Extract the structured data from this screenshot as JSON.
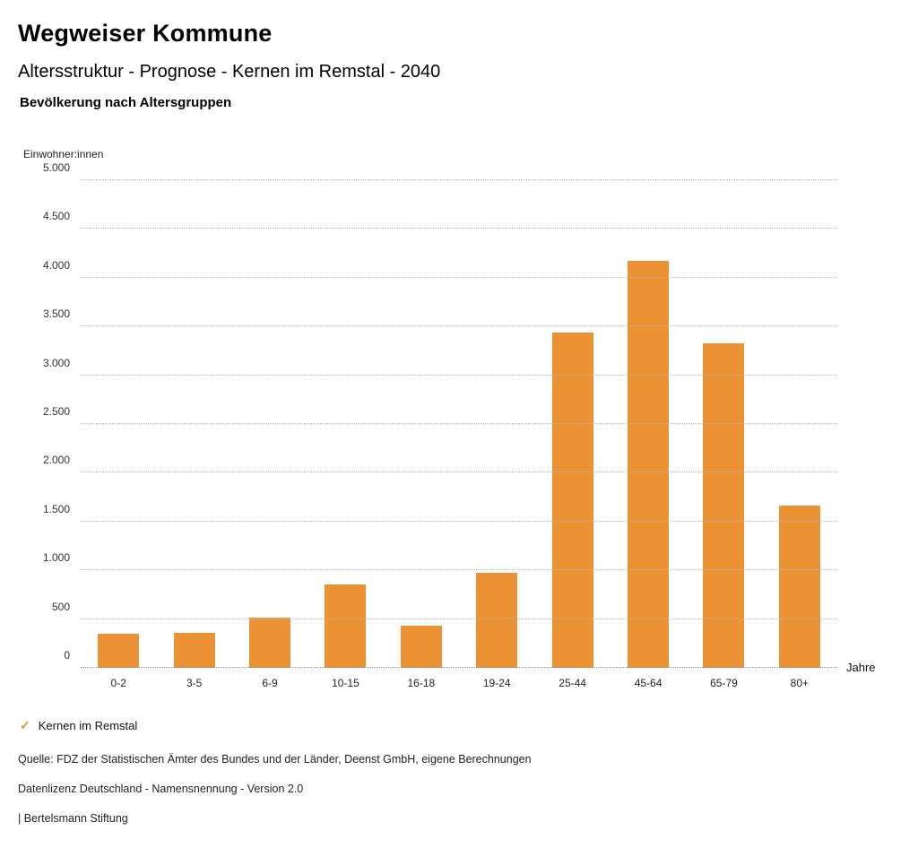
{
  "header": {
    "title": "Wegweiser Kommune",
    "subtitle": "Altersstruktur - Prognose - Kernen im Remstal - 2040",
    "section_heading": "Bevölkerung nach Altersgruppen"
  },
  "chart_data": {
    "type": "bar",
    "title": "Bevölkerung nach Altersgruppen",
    "ylabel": "Einwohner:innen",
    "xlabel": "Jahre",
    "categories": [
      "0-2",
      "3-5",
      "6-9",
      "10-15",
      "16-18",
      "19-24",
      "25-44",
      "45-64",
      "65-79",
      "80+"
    ],
    "values": [
      350,
      360,
      515,
      855,
      435,
      975,
      3440,
      4170,
      3330,
      1665
    ],
    "series_name": "Kernen im Remstal",
    "ylim": [
      0,
      5000
    ],
    "ytick_step": 500,
    "yticks": [
      {
        "value": 0,
        "label": "0"
      },
      {
        "value": 500,
        "label": "500"
      },
      {
        "value": 1000,
        "label": "1.000"
      },
      {
        "value": 1500,
        "label": "1.500"
      },
      {
        "value": 2000,
        "label": "2.000"
      },
      {
        "value": 2500,
        "label": "2.500"
      },
      {
        "value": 3000,
        "label": "3.000"
      },
      {
        "value": 3500,
        "label": "3.500"
      },
      {
        "value": 4000,
        "label": "4.000"
      },
      {
        "value": 4500,
        "label": "4.500"
      },
      {
        "value": 5000,
        "label": "5.000"
      }
    ],
    "bar_color": "#EB9234",
    "grid": true,
    "legend_position": "bottom-left"
  },
  "legend": {
    "check_icon": "✓",
    "label": "Kernen im Remstal",
    "color": "#EB9234"
  },
  "footer": {
    "source": "Quelle: FDZ der Statistischen Ämter des Bundes und der Länder, Deenst GmbH, eigene Berechnungen",
    "license": "Datenlizenz Deutschland - Namensnennung - Version 2.0",
    "attribution": "| Bertelsmann Stiftung"
  }
}
